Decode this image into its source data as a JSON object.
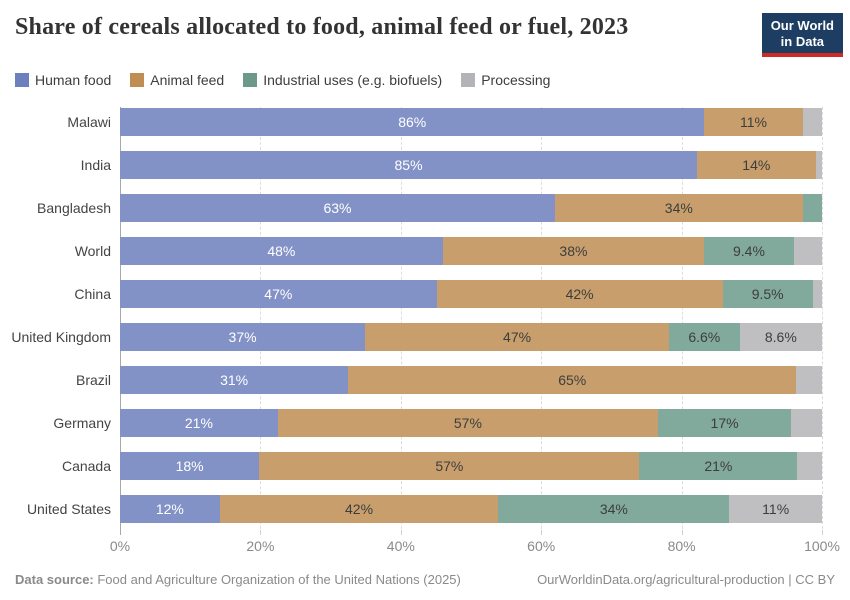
{
  "header": {
    "title": "Share of cereals allocated to food, animal feed or fuel, 2023",
    "logo": {
      "line1": "Our World",
      "line2": "in Data",
      "bg_color": "#1d3d63",
      "accent_color": "#cf2a27"
    }
  },
  "legend": [
    {
      "label": "Human food",
      "color": "#6d80bd"
    },
    {
      "label": "Animal feed",
      "color": "#bf8e52"
    },
    {
      "label": "Industrial uses (e.g. biofuels)",
      "color": "#6b9a8b"
    },
    {
      "label": "Processing",
      "color": "#b4b4b8"
    }
  ],
  "chart_data": {
    "type": "bar",
    "orientation": "horizontal",
    "stacked": true,
    "unit": "%",
    "xlim": [
      0,
      100
    ],
    "grid": true,
    "x_tick_labels": [
      "0%",
      "20%",
      "40%",
      "60%",
      "80%",
      "100%"
    ],
    "categories": [
      "Malawi",
      "India",
      "Bangladesh",
      "World",
      "China",
      "United Kingdom",
      "Brazil",
      "Germany",
      "Canada",
      "United States"
    ],
    "series": [
      {
        "name": "Human food",
        "key": "human-food",
        "color": "#6d80bd",
        "bar_color": "#8392c6",
        "label_text_color": "#ffffff",
        "values": [
          86,
          85,
          63,
          48,
          47,
          37,
          31,
          21,
          18,
          12
        ],
        "labels": [
          "86%",
          "85%",
          "63%",
          "48%",
          "47%",
          "37%",
          "31%",
          "21%",
          "18%",
          "12%"
        ]
      },
      {
        "name": "Animal feed",
        "key": "animal-feed",
        "color": "#bf8e52",
        "bar_color": "#c89f6c",
        "label_text_color": "#3d3d3d",
        "values": [
          11,
          14,
          34,
          38,
          42,
          47,
          65,
          57,
          57,
          42
        ],
        "labels": [
          "11%",
          "14%",
          "34%",
          "38%",
          "42%",
          "47%",
          "65%",
          "57%",
          "57%",
          "42%"
        ]
      },
      {
        "name": "Industrial uses (e.g. biofuels)",
        "key": "industrial-uses",
        "color": "#6b9a8b",
        "bar_color": "#81a99c",
        "label_text_color": "#3d3d3d",
        "values": [
          0,
          0,
          3,
          9.4,
          9.5,
          6.6,
          0,
          17,
          21,
          34
        ],
        "labels": [
          "",
          "",
          "",
          "9.4%",
          "9.5%",
          "6.6%",
          "",
          "17%",
          "21%",
          "34%"
        ]
      },
      {
        "name": "Processing",
        "key": "processing",
        "color": "#b4b4b8",
        "bar_color": "#bfbfc2",
        "label_text_color": "#3d3d3d",
        "values": [
          3,
          1,
          0,
          4.6,
          1.5,
          8.6,
          4,
          5,
          4,
          11
        ],
        "labels": [
          "",
          "",
          "",
          "",
          "",
          "8.6%",
          "",
          "",
          "",
          "11%"
        ]
      }
    ]
  },
  "footer": {
    "data_source_label": "Data source:",
    "data_source_value": " Food and Agriculture Organization of the United Nations (2025)",
    "credit": "OurWorldinData.org/agricultural-production | CC BY"
  }
}
